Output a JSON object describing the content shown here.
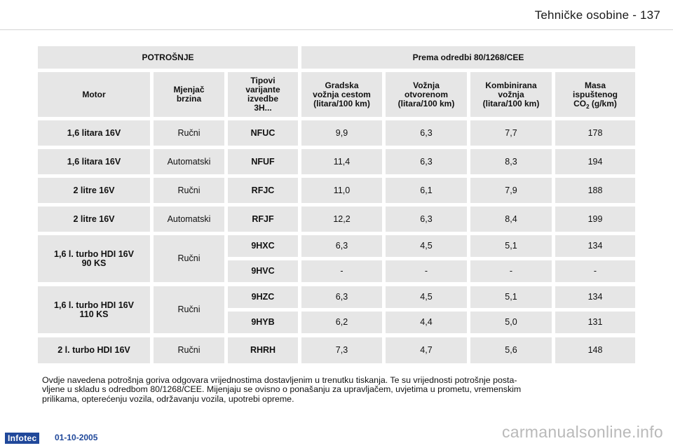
{
  "page": {
    "section_title": "Tehničke osobine",
    "separator": "-",
    "page_number": "137"
  },
  "table": {
    "title_left": "POTROŠNJE",
    "title_right": "Prema odredbi 80/1268/CEE",
    "columns": {
      "motor": "Motor",
      "gearbox_1": "Mjenjač",
      "gearbox_2": "brzina",
      "variant_1": "Tipovi",
      "variant_2": "varijante",
      "variant_3": "izvedbe",
      "variant_4": "3H...",
      "urban_1": "Gradska",
      "urban_2": "vožnja cestom",
      "urban_3": "(litara/100 km)",
      "extra_1": "Vožnja",
      "extra_2": "otvorenom",
      "extra_3": "(litara/100 km)",
      "comb_1": "Kombinirana",
      "comb_2": "vožnja",
      "comb_3": "(litara/100 km)",
      "co2_1": "Masa",
      "co2_2": "ispuštenog",
      "co2_3a": "CO",
      "co2_3b": "2",
      "co2_3c": " (g/km)"
    },
    "rows": [
      {
        "motor": "1,6 litara 16V",
        "gearbox": "Ručni",
        "variant": "NFUC",
        "urban": "9,9",
        "extra": "6,3",
        "combined": "7,7",
        "co2": "178"
      },
      {
        "motor": "1,6 litara 16V",
        "gearbox": "Automatski",
        "variant": "NFUF",
        "urban": "11,4",
        "extra": "6,3",
        "combined": "8,3",
        "co2": "194"
      },
      {
        "motor": "2 litre 16V",
        "gearbox": "Ručni",
        "variant": "RFJC",
        "urban": "11,0",
        "extra": "6,1",
        "combined": "7,9",
        "co2": "188"
      },
      {
        "motor": "2 litre 16V",
        "gearbox": "Automatski",
        "variant": "RFJF",
        "urban": "12,2",
        "extra": "6,3",
        "combined": "8,4",
        "co2": "199"
      }
    ],
    "groups": [
      {
        "motor_1": "1,6 l. turbo HDI 16V",
        "motor_2": "90 KS",
        "gearbox": "Ručni",
        "sub": [
          {
            "variant": "9HXC",
            "urban": "6,3",
            "extra": "4,5",
            "combined": "5,1",
            "co2": "134"
          },
          {
            "variant": "9HVC",
            "urban": "-",
            "extra": "-",
            "combined": "-",
            "co2": "-"
          }
        ]
      },
      {
        "motor_1": "1,6 l. turbo HDI 16V",
        "motor_2": "110 KS",
        "gearbox": "Ručni",
        "sub": [
          {
            "variant": "9HZC",
            "urban": "6,3",
            "extra": "4,5",
            "combined": "5,1",
            "co2": "134"
          },
          {
            "variant": "9HYB",
            "urban": "6,2",
            "extra": "4,4",
            "combined": "5,0",
            "co2": "131"
          }
        ]
      }
    ],
    "last_row": {
      "motor": "2 l. turbo HDI 16V",
      "gearbox": "Ručni",
      "variant": "RHRH",
      "urban": "7,3",
      "extra": "4,7",
      "combined": "5,6",
      "co2": "148"
    }
  },
  "note": {
    "line_1": "Ovdje navedena potrošnja goriva odgovara vrijednostima dostavljenim u trenutku tiskanja. Te su vrijednosti potrošnje posta-",
    "line_2": "vljene u skladu s odredbom 80/1268/CEE. Mijenjaju se ovisno o ponašanju za upravljačem, uvjetima u prometu, vremenskim",
    "line_3": "prilikama, opterećenju vozila, održavanju vozila, upotrebi opreme."
  },
  "footer": {
    "logo": "Infotec",
    "date": "01-10-2005",
    "watermark": "carmanualsonline.info"
  },
  "colors": {
    "cell_bg": "#e6e6e6",
    "logo_bg": "#20489a",
    "watermark": "#b9b9b9"
  }
}
